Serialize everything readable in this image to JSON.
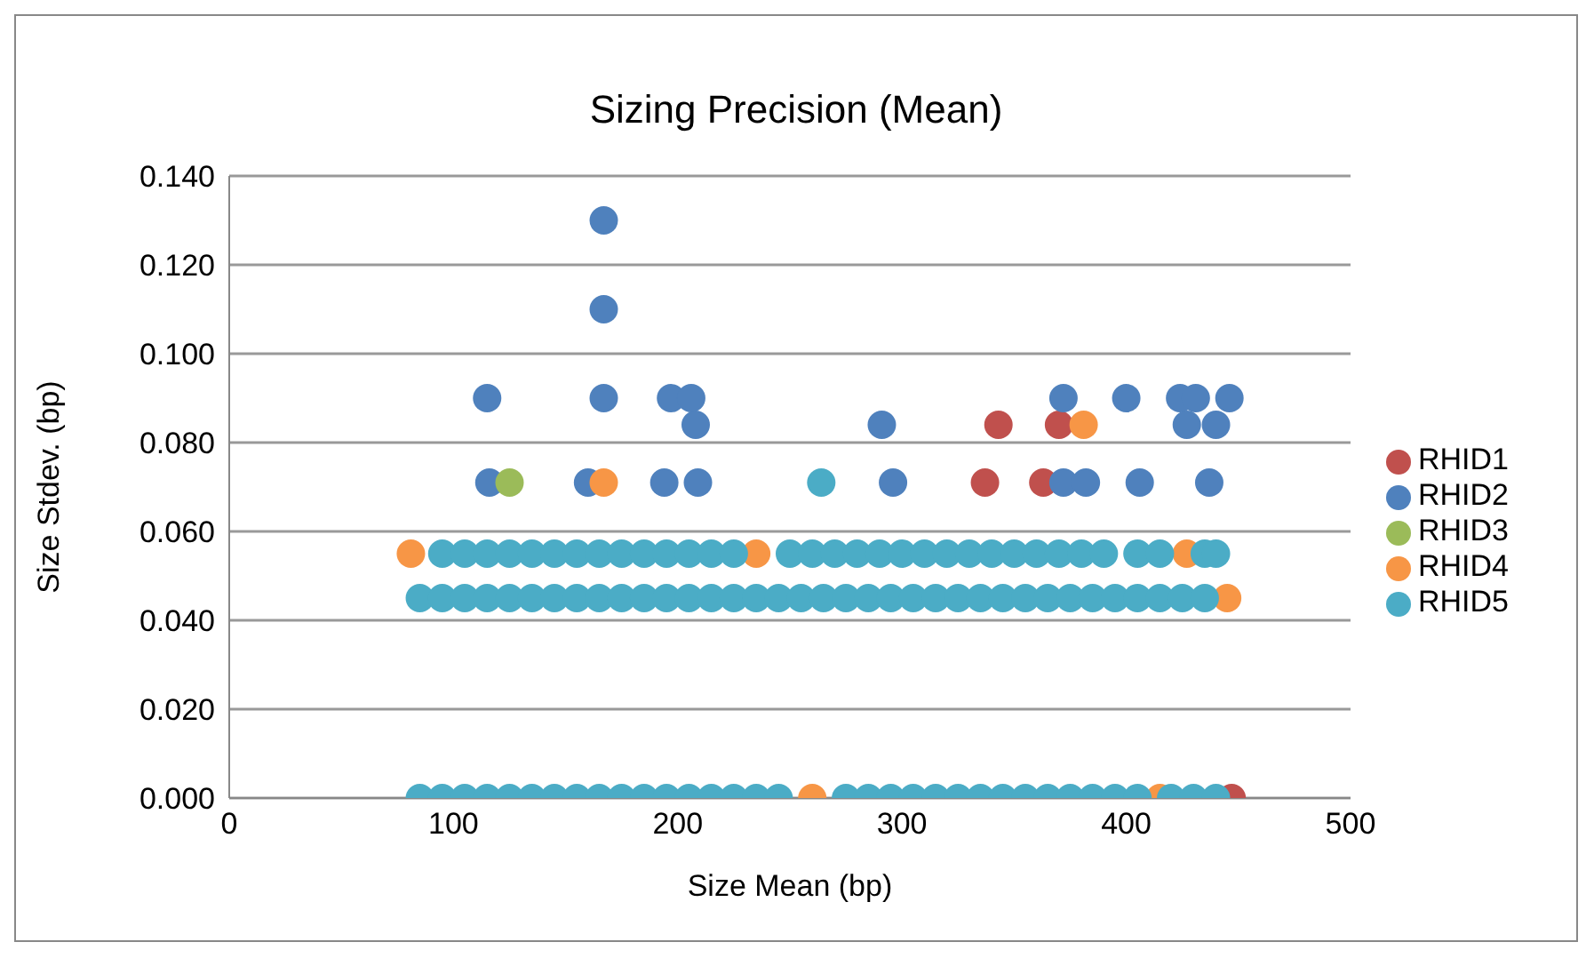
{
  "chart_data": {
    "type": "scatter",
    "title": "Sizing Precision (Mean)",
    "xlabel": "Size Mean (bp)",
    "ylabel": "Size Stdev. (bp)",
    "xlim": [
      0,
      500
    ],
    "xticks": [
      0,
      100,
      200,
      300,
      400,
      500
    ],
    "ylim": [
      0,
      0.14
    ],
    "yticks": [
      {
        "value": 0,
        "label": "0.000"
      },
      {
        "value": 0.02,
        "label": "0.020"
      },
      {
        "value": 0.04,
        "label": "0.040"
      },
      {
        "value": 0.06,
        "label": "0.060"
      },
      {
        "value": 0.08,
        "label": "0.080"
      },
      {
        "value": 0.1,
        "label": "0.100"
      },
      {
        "value": 0.12,
        "label": "0.120"
      },
      {
        "value": 0.14,
        "label": "0.140"
      }
    ],
    "grid": "y",
    "legend": "right",
    "marker": "circle",
    "series": [
      {
        "name": "RHID1",
        "color": "#c0504d",
        "x": [
          343,
          370,
          337,
          363,
          435,
          447
        ],
        "values": [
          0.084,
          0.084,
          0.071,
          0.071,
          null,
          0
        ]
      },
      {
        "name": "RHID2",
        "color": "#4f81bd",
        "x": [
          167,
          167,
          115,
          164,
          167,
          197,
          206,
          208,
          372,
          400,
          424,
          431,
          446,
          291,
          427,
          440,
          116,
          160,
          194,
          209,
          296,
          372,
          382,
          406,
          437
        ],
        "values": [
          0.13,
          0.11,
          0.09,
          null,
          0.09,
          0.09,
          0.09,
          0.084,
          0.09,
          0.09,
          0.09,
          0.09,
          0.09,
          0.084,
          0.084,
          0.084,
          0.071,
          0.071,
          0.071,
          0.071,
          0.071,
          0.071,
          0.071,
          0.071,
          0.071
        ]
      },
      {
        "name": "RHID3",
        "color": "#9bbb59",
        "x": [
          125
        ],
        "values": [
          0.071
        ]
      },
      {
        "name": "RHID4",
        "color": "#f79646",
        "x": [
          81,
          235,
          397,
          427,
          445,
          260,
          415,
          167,
          381
        ],
        "values": [
          0.055,
          0.055,
          null,
          0.055,
          0.045,
          0,
          0,
          0.071,
          0.084
        ]
      },
      {
        "name": "RHID5",
        "color": "#4bacc6",
        "x": [
          85,
          95,
          105,
          115,
          125,
          135,
          145,
          155,
          165,
          175,
          185,
          195,
          205,
          215,
          225,
          235,
          245,
          275,
          285,
          295,
          305,
          315,
          325,
          335,
          345,
          355,
          365,
          375,
          385,
          395,
          405,
          420,
          430,
          440,
          85,
          95,
          105,
          115,
          125,
          135,
          145,
          155,
          165,
          175,
          185,
          195,
          205,
          215,
          225,
          235,
          245,
          255,
          265,
          275,
          285,
          295,
          305,
          315,
          325,
          335,
          345,
          355,
          365,
          375,
          385,
          395,
          405,
          415,
          425,
          435,
          95,
          105,
          115,
          125,
          135,
          145,
          155,
          165,
          175,
          185,
          195,
          205,
          215,
          225,
          250,
          260,
          270,
          280,
          290,
          300,
          310,
          320,
          330,
          340,
          350,
          360,
          370,
          380,
          390,
          405,
          415,
          435,
          440,
          264
        ],
        "values": [
          0,
          0,
          0,
          0,
          0,
          0,
          0,
          0,
          0,
          0,
          0,
          0,
          0,
          0,
          0,
          0,
          0,
          0,
          0,
          0,
          0,
          0,
          0,
          0,
          0,
          0,
          0,
          0,
          0,
          0,
          0,
          0,
          0,
          0,
          0.045,
          0.045,
          0.045,
          0.045,
          0.045,
          0.045,
          0.045,
          0.045,
          0.045,
          0.045,
          0.045,
          0.045,
          0.045,
          0.045,
          0.045,
          0.045,
          0.045,
          0.045,
          0.045,
          0.045,
          0.045,
          0.045,
          0.045,
          0.045,
          0.045,
          0.045,
          0.045,
          0.045,
          0.045,
          0.045,
          0.045,
          0.045,
          0.045,
          0.045,
          0.045,
          0.045,
          0.055,
          0.055,
          0.055,
          0.055,
          0.055,
          0.055,
          0.055,
          0.055,
          0.055,
          0.055,
          0.055,
          0.055,
          0.055,
          0.055,
          0.055,
          0.055,
          0.055,
          0.055,
          0.055,
          0.055,
          0.055,
          0.055,
          0.055,
          0.055,
          0.055,
          0.055,
          0.055,
          0.055,
          0.055,
          0.055,
          0.055,
          0.055,
          0.055,
          0.071
        ]
      }
    ]
  }
}
